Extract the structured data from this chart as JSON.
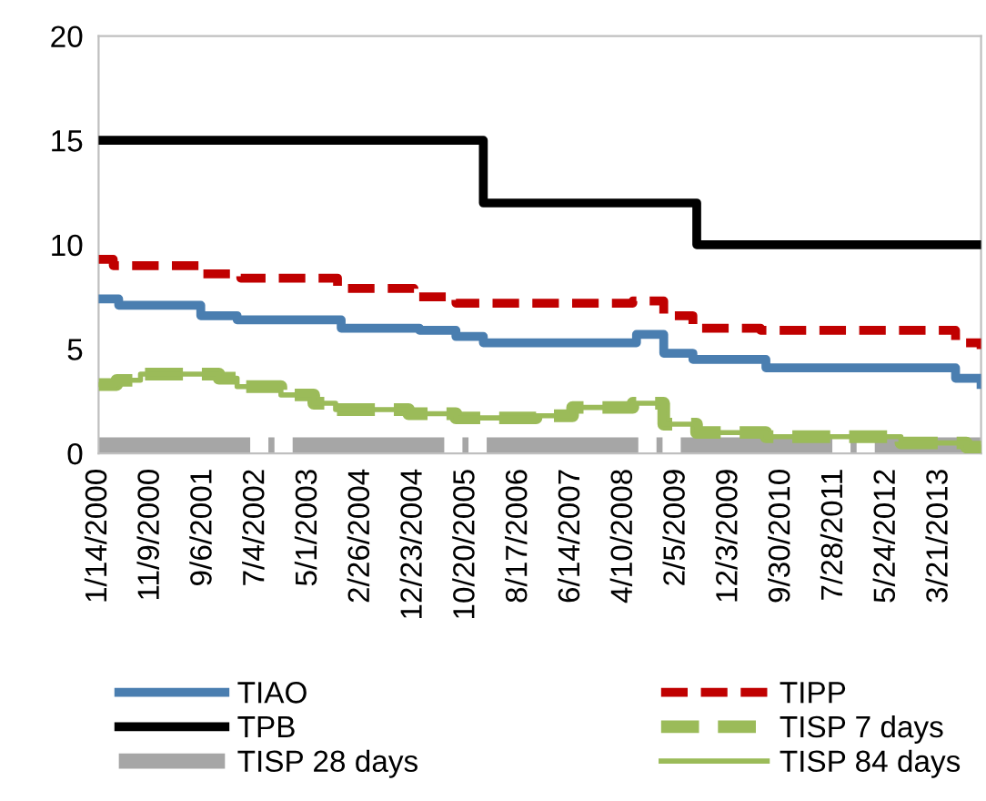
{
  "chart_data": {
    "type": "step",
    "ylim": [
      0,
      20
    ],
    "yticks": [
      0,
      5,
      10,
      15,
      20
    ],
    "xlim": [
      "2000-01-14",
      "2013-11-14"
    ],
    "xticks": [
      {
        "value": "2000-01-14",
        "label": "1/14/2000"
      },
      {
        "value": "2000-11-09",
        "label": "11/9/2000"
      },
      {
        "value": "2001-09-06",
        "label": "9/6/2001"
      },
      {
        "value": "2002-07-04",
        "label": "7/4/2002"
      },
      {
        "value": "2003-05-01",
        "label": "5/1/2003"
      },
      {
        "value": "2004-02-26",
        "label": "2/26/2004"
      },
      {
        "value": "2004-12-23",
        "label": "12/23/2004"
      },
      {
        "value": "2005-10-20",
        "label": "10/20/2005"
      },
      {
        "value": "2006-08-17",
        "label": "8/17/2006"
      },
      {
        "value": "2007-06-14",
        "label": "6/14/2007"
      },
      {
        "value": "2008-04-10",
        "label": "4/10/2008"
      },
      {
        "value": "2009-02-05",
        "label": "2/5/2009"
      },
      {
        "value": "2009-12-03",
        "label": "12/3/2009"
      },
      {
        "value": "2010-09-30",
        "label": "9/30/2010"
      },
      {
        "value": "2011-07-28",
        "label": "7/28/2011"
      },
      {
        "value": "2012-05-24",
        "label": "5/24/2012"
      },
      {
        "value": "2013-03-21",
        "label": "3/21/2013"
      }
    ],
    "grid": false,
    "legend": "bottom",
    "marker": "none",
    "series": [
      {
        "name": "TIAO",
        "color": "#4a7eb0",
        "line_style": "solid",
        "x": [
          "2000-01-14",
          "2000-05-08",
          "2001-08-21",
          "2002-03-17",
          "2003-11-03",
          "2005-01-24",
          "2005-08-21",
          "2006-01-25",
          "2008-06-20",
          "2008-11-23",
          "2009-05-09",
          "2010-07-01",
          "2013-06-21",
          "2013-11-14"
        ],
        "values": [
          7.4,
          7.1,
          6.6,
          6.4,
          6.0,
          5.9,
          5.6,
          5.3,
          5.7,
          4.8,
          4.5,
          4.1,
          3.6,
          3.3
        ]
      },
      {
        "name": "TIPP",
        "color": "#c00000",
        "line_style": "dashed",
        "x": [
          "2000-01-14",
          "2000-04-07",
          "2001-08-10",
          "2002-04-07",
          "2003-10-13",
          "2004-12-24",
          "2005-08-21",
          "2008-05-30",
          "2008-11-23",
          "2009-05-09",
          "2010-05-31",
          "2013-06-21",
          "2013-11-14"
        ],
        "values": [
          9.3,
          9.0,
          8.6,
          8.4,
          7.9,
          7.5,
          7.2,
          7.3,
          6.6,
          6.0,
          5.9,
          5.3,
          5.0
        ]
      },
      {
        "name": "TPB",
        "color": "#000000",
        "line_style": "solid",
        "x": [
          "2000-01-14",
          "2006-01-25",
          "2009-05-31",
          "2013-11-14"
        ],
        "values": [
          15,
          12,
          10,
          10
        ]
      },
      {
        "name": "TISP 7 days",
        "color": "#9bbb59",
        "line_style": "dashed",
        "x": [
          "2000-01-14",
          "2000-04-27",
          "2000-09-10",
          "2001-12-03",
          "2002-03-17",
          "2002-11-23",
          "2003-05-30",
          "2003-10-02",
          "2004-11-23",
          "2005-08-21",
          "2006-11-23",
          "2007-06-20",
          "2008-05-30",
          "2008-11-23",
          "2009-05-30",
          "2010-07-01",
          "2012-08-12",
          "2013-08-22",
          "2013-11-14"
        ],
        "values": [
          3.3,
          3.5,
          3.8,
          3.6,
          3.2,
          2.8,
          2.4,
          2.1,
          1.9,
          1.7,
          1.8,
          2.2,
          2.4,
          1.4,
          1.0,
          0.8,
          0.5,
          0.3,
          0.1
        ]
      },
      {
        "name": "TISP 28 days",
        "color": "#a6a6a6",
        "line_style": "dashdot",
        "x": [
          "2000-01-14",
          "2013-11-14"
        ],
        "values": [
          0.4,
          0.4
        ]
      },
      {
        "name": "TISP 84 days",
        "color": "#9bbb59",
        "line_style": "solid",
        "x": [
          "2000-01-14",
          "2000-04-27",
          "2000-09-10",
          "2001-12-03",
          "2002-03-17",
          "2002-11-23",
          "2003-05-30",
          "2003-10-02",
          "2004-11-23",
          "2005-08-21",
          "2006-11-23",
          "2007-06-20",
          "2008-05-30",
          "2008-11-23",
          "2009-05-30",
          "2010-07-01",
          "2012-08-12",
          "2013-08-22",
          "2013-11-14"
        ],
        "values": [
          3.3,
          3.5,
          3.8,
          3.6,
          3.2,
          2.8,
          2.4,
          2.1,
          1.9,
          1.7,
          1.8,
          2.2,
          2.4,
          1.4,
          1.0,
          0.8,
          0.5,
          0.3,
          0.1
        ]
      }
    ]
  }
}
